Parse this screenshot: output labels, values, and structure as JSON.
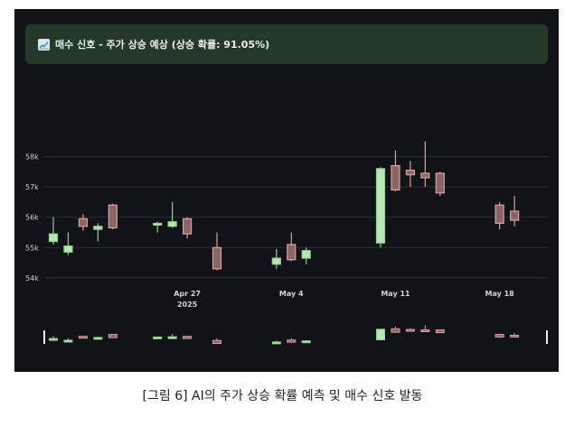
{
  "alert": {
    "icon": "chart-increasing-icon",
    "text": "매수 신호 - 주가 상승 예상 (상승 확률: 91.05%)"
  },
  "caption": "[그림 6] AI의 주가 상승 확률 예측 및 매수 신호 발동",
  "colors": {
    "background": "#111318",
    "up": "#8fd18f",
    "up_fill": "#b9e6b4",
    "down": "#d9a2a0",
    "down_fill": "#8a6566",
    "alert_bg": "#25392b",
    "grid": "#2a2d33",
    "text": "#cfd3d8"
  },
  "chart_data": {
    "type": "candlestick",
    "y_ticks": [
      54000,
      55000,
      56000,
      57000,
      58000
    ],
    "y_tick_labels": [
      "54k",
      "55k",
      "56k",
      "57k",
      "58k"
    ],
    "ylim": [
      53700,
      58400
    ],
    "xlim": [
      "2025-04-18",
      "2025-05-21"
    ],
    "x_ticks": [
      "2025-04-27",
      "2025-05-04",
      "2025-05-11",
      "2025-05-18"
    ],
    "x_tick_labels": [
      "Apr 27\n2025",
      "May 4",
      "May 11",
      "May 18"
    ],
    "candles": [
      {
        "date": "2025-04-18",
        "open": 55200,
        "high": 56000,
        "low": 55100,
        "close": 55450
      },
      {
        "date": "2025-04-19",
        "open": 54850,
        "high": 55500,
        "low": 54750,
        "close": 55050
      },
      {
        "date": "2025-04-20",
        "open": 55950,
        "high": 56100,
        "low": 55550,
        "close": 55700
      },
      {
        "date": "2025-04-21",
        "open": 55600,
        "high": 55800,
        "low": 55200,
        "close": 55700
      },
      {
        "date": "2025-04-22",
        "open": 56400,
        "high": 56450,
        "low": 55600,
        "close": 55650
      },
      {
        "date": "2025-04-25",
        "open": 55750,
        "high": 55850,
        "low": 55500,
        "close": 55800
      },
      {
        "date": "2025-04-26",
        "open": 55700,
        "high": 56500,
        "low": 55650,
        "close": 55850
      },
      {
        "date": "2025-04-27",
        "open": 55950,
        "high": 56000,
        "low": 55300,
        "close": 55450
      },
      {
        "date": "2025-04-29",
        "open": 55000,
        "high": 55500,
        "low": 54250,
        "close": 54300
      },
      {
        "date": "2025-05-03",
        "open": 54450,
        "high": 54950,
        "low": 54300,
        "close": 54650
      },
      {
        "date": "2025-05-04",
        "open": 55100,
        "high": 55500,
        "low": 54550,
        "close": 54600
      },
      {
        "date": "2025-05-05",
        "open": 54650,
        "high": 55000,
        "low": 54450,
        "close": 54900
      },
      {
        "date": "2025-05-10",
        "open": 55150,
        "high": 57650,
        "low": 55000,
        "close": 57600
      },
      {
        "date": "2025-05-11",
        "open": 57700,
        "high": 58200,
        "low": 56850,
        "close": 56900
      },
      {
        "date": "2025-05-12",
        "open": 57550,
        "high": 57850,
        "low": 57000,
        "close": 57400
      },
      {
        "date": "2025-05-13",
        "open": 57450,
        "high": 58500,
        "low": 57000,
        "close": 57300
      },
      {
        "date": "2025-05-14",
        "open": 57450,
        "high": 57500,
        "low": 56700,
        "close": 56800
      },
      {
        "date": "2025-05-18",
        "open": 56400,
        "high": 56500,
        "low": 55600,
        "close": 55800
      },
      {
        "date": "2025-05-19",
        "open": 56200,
        "high": 56700,
        "low": 55700,
        "close": 55900
      }
    ],
    "grid": true,
    "legend": "none"
  }
}
